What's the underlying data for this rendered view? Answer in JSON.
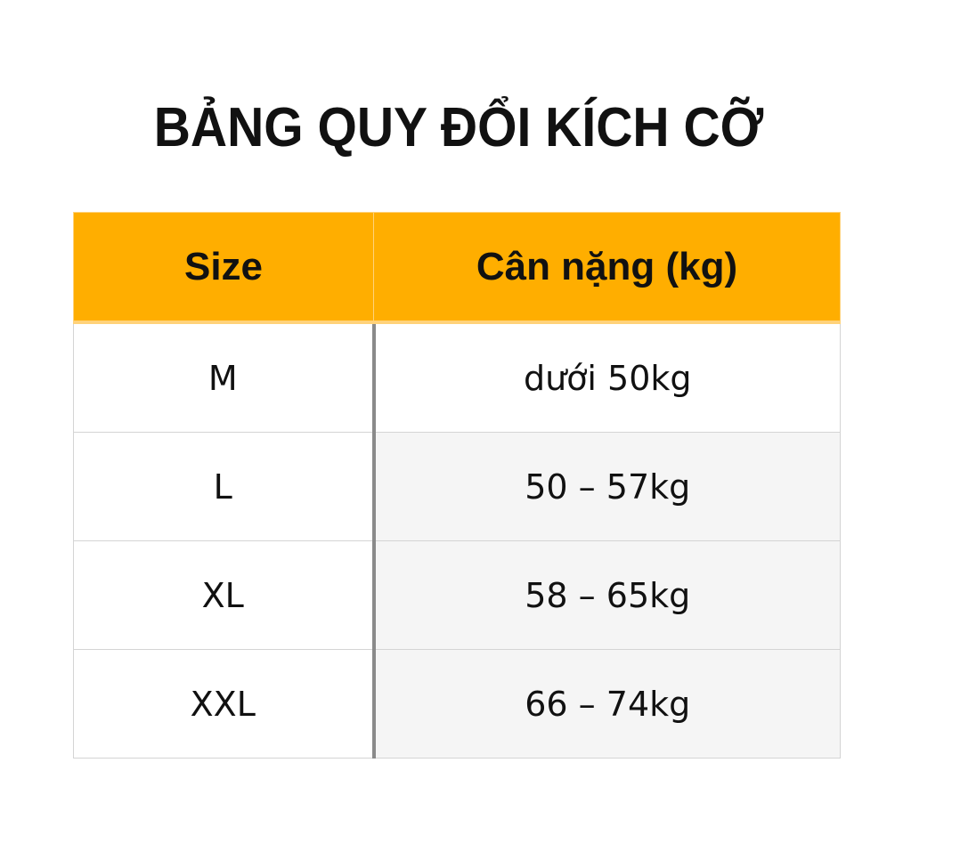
{
  "title": "BẢNG QUY ĐỔI KÍCH CỠ",
  "colors": {
    "header_bg": "#ffae00",
    "divider": "#8a8a8a",
    "alt_row": "#f5f5f5"
  },
  "table": {
    "headers": [
      "Size",
      "Cân nặng (kg)"
    ],
    "rows": [
      {
        "size": "M",
        "weight": "dưới 50kg"
      },
      {
        "size": "L",
        "weight": "50 – 57kg"
      },
      {
        "size": "XL",
        "weight": "58 – 65kg"
      },
      {
        "size": "XXL",
        "weight": "66 – 74kg"
      }
    ]
  }
}
